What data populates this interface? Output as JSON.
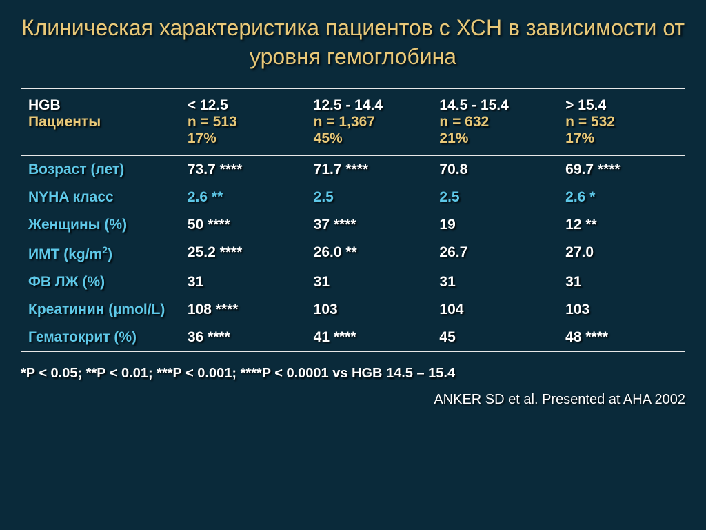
{
  "title": "Клиническая характеристика пациентов с ХСН в зависимости от уровня гемоглобина",
  "header": {
    "hgb_label": "HGB",
    "patients_label": "Пациенты",
    "cols": [
      {
        "range": "< 12.5",
        "n": "n = 513",
        "pct": "17%"
      },
      {
        "range": "12.5 - 14.4",
        "n": "n = 1,367",
        "pct": "45%"
      },
      {
        "range": "14.5 - 15.4",
        "n": "n = 632",
        "pct": "21%"
      },
      {
        "range": "> 15.4",
        "n": "n = 532",
        "pct": "17%"
      }
    ]
  },
  "rows": [
    {
      "label": "Возраст (лет)",
      "vals": [
        "73.7 ****",
        "71.7 ****",
        "70.8",
        "69.7 ****"
      ],
      "cyan": false
    },
    {
      "label": "NYHA класс",
      "vals": [
        "2.6 **",
        "2.5",
        "2.5",
        "2.6 *"
      ],
      "cyan": true
    },
    {
      "label": "Женщины (%)",
      "vals": [
        "50 ****",
        "37 ****",
        "19",
        "12 **"
      ],
      "cyan": false
    },
    {
      "label": "ИМТ (kg/m²)",
      "vals": [
        "25.2 ****",
        "26.0 **",
        "26.7",
        "27.0"
      ],
      "cyan": false,
      "html_label": "ИМТ (kg/m<sup>2</sup>)"
    },
    {
      "label": "ФВ ЛЖ (%)",
      "vals": [
        "31",
        "31",
        "31",
        "31"
      ],
      "cyan": false
    },
    {
      "label": "Креатинин (µmol/L)",
      "vals": [
        "108 ****",
        "103",
        "104",
        "103"
      ],
      "cyan": false
    },
    {
      "label": "Гематокрит (%)",
      "vals": [
        "36 ****",
        "41 ****",
        "45",
        "48 ****"
      ],
      "cyan": false
    }
  ],
  "footnote": "*P < 0.05; **P < 0.01; ***P < 0.001; ****P < 0.0001 vs HGB 14.5 – 15.4",
  "citation": "ANKER SD et al. Presented at AHA 2002",
  "colors": {
    "background": "#0a2a3a",
    "title": "#e8c878",
    "white": "#ffffff",
    "gold": "#e8c878",
    "cyan": "#5ec8e8",
    "border": "#e8e8e8"
  },
  "fonts": {
    "title_size": 32,
    "cell_size": 21,
    "footnote_size": 20
  }
}
